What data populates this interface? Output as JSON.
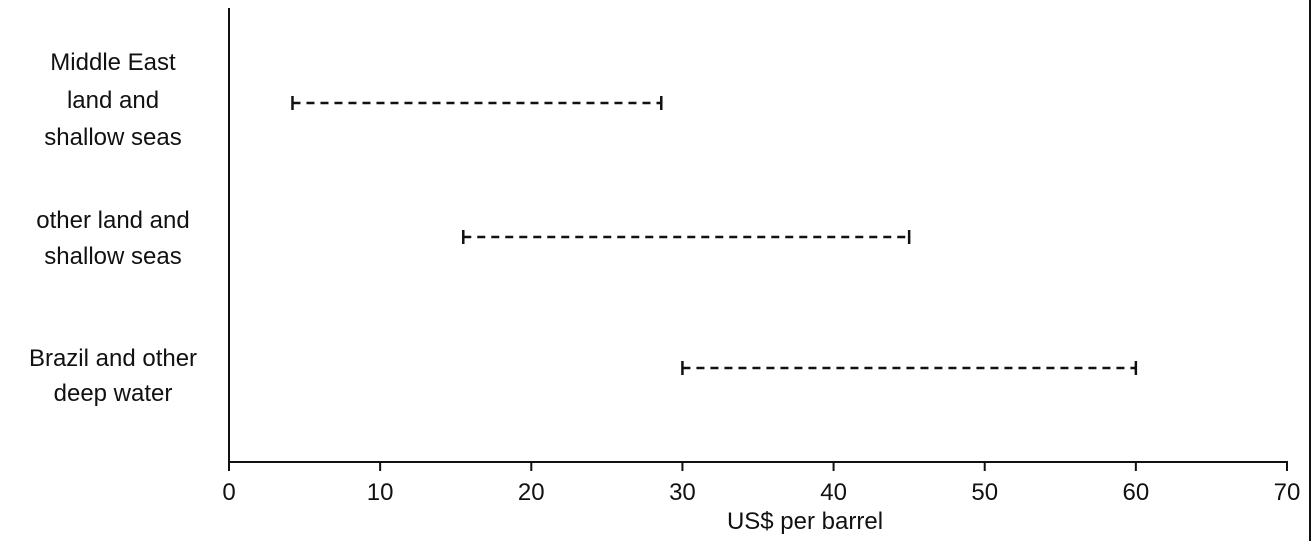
{
  "chart_data": {
    "type": "range",
    "categories": [
      [
        "Middle East",
        "land and",
        "shallow seas"
      ],
      [
        "other land and",
        "shallow seas"
      ],
      [
        "Brazil and other",
        "deep water"
      ]
    ],
    "ranges": [
      {
        "low": 4.2,
        "high": 28.6
      },
      {
        "low": 15.5,
        "high": 45
      },
      {
        "low": 30,
        "high": 60
      }
    ],
    "xlabel": "US$ per barrel",
    "xlim": [
      0,
      70
    ],
    "xticks": [
      "0",
      "10",
      "20",
      "30",
      "40",
      "50",
      "60",
      "70"
    ],
    "grid": false
  }
}
